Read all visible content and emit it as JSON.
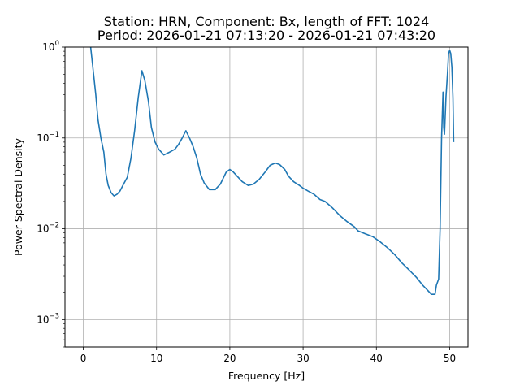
{
  "chart_data": {
    "type": "line",
    "title": [
      "Station: HRN, Component: Bx, length of FFT: 1024",
      "Period: 2026-01-21 07:13:20 - 2026-01-21 07:43:20"
    ],
    "xlabel": "Frequency [Hz]",
    "ylabel": "Power Spectral Density",
    "xlim": [
      -2.5,
      52.5
    ],
    "ylim": [
      0.0005,
      1
    ],
    "yscale": "log",
    "grid": true,
    "x_ticks": [
      {
        "value": 0,
        "label": "0"
      },
      {
        "value": 10,
        "label": "10"
      },
      {
        "value": 20,
        "label": "20"
      },
      {
        "value": 30,
        "label": "30"
      },
      {
        "value": 40,
        "label": "40"
      },
      {
        "value": 50,
        "label": "50"
      }
    ],
    "y_ticks": [
      {
        "value": 0.001,
        "label": "10⁻³",
        "base": "10",
        "exp": "−3"
      },
      {
        "value": 0.01,
        "label": "10⁻²",
        "base": "10",
        "exp": "−2"
      },
      {
        "value": 0.1,
        "label": "10⁻¹",
        "base": "10",
        "exp": "−1"
      },
      {
        "value": 1,
        "label": "10⁰",
        "base": "10",
        "exp": "0"
      }
    ],
    "colors": {
      "series": "#1f77b4",
      "grid": "#b0b0b0"
    },
    "series": [
      {
        "points": [
          [
            1.0,
            1.0
          ],
          [
            1.3,
            0.6
          ],
          [
            1.7,
            0.3
          ],
          [
            2.0,
            0.16
          ],
          [
            2.4,
            0.1
          ],
          [
            2.8,
            0.07
          ],
          [
            3.1,
            0.04
          ],
          [
            3.4,
            0.03
          ],
          [
            3.8,
            0.025
          ],
          [
            4.2,
            0.023
          ],
          [
            4.6,
            0.024
          ],
          [
            5.0,
            0.026
          ],
          [
            5.5,
            0.031
          ],
          [
            6.0,
            0.037
          ],
          [
            6.5,
            0.06
          ],
          [
            7.0,
            0.12
          ],
          [
            7.5,
            0.28
          ],
          [
            8.0,
            0.55
          ],
          [
            8.4,
            0.43
          ],
          [
            8.9,
            0.25
          ],
          [
            9.3,
            0.13
          ],
          [
            9.8,
            0.09
          ],
          [
            10.3,
            0.075
          ],
          [
            11.0,
            0.065
          ],
          [
            11.8,
            0.07
          ],
          [
            12.5,
            0.075
          ],
          [
            13.0,
            0.085
          ],
          [
            13.5,
            0.1
          ],
          [
            14.0,
            0.12
          ],
          [
            14.5,
            0.1
          ],
          [
            15.0,
            0.08
          ],
          [
            15.5,
            0.06
          ],
          [
            16.0,
            0.04
          ],
          [
            16.5,
            0.032
          ],
          [
            17.2,
            0.027
          ],
          [
            18.0,
            0.027
          ],
          [
            18.7,
            0.031
          ],
          [
            19.5,
            0.042
          ],
          [
            20.0,
            0.045
          ],
          [
            20.5,
            0.042
          ],
          [
            21.0,
            0.038
          ],
          [
            21.7,
            0.033
          ],
          [
            22.5,
            0.03
          ],
          [
            23.2,
            0.031
          ],
          [
            24.0,
            0.035
          ],
          [
            24.8,
            0.042
          ],
          [
            25.5,
            0.05
          ],
          [
            26.2,
            0.053
          ],
          [
            26.8,
            0.051
          ],
          [
            27.5,
            0.045
          ],
          [
            28.0,
            0.038
          ],
          [
            28.7,
            0.033
          ],
          [
            29.5,
            0.03
          ],
          [
            30.0,
            0.028
          ],
          [
            30.7,
            0.026
          ],
          [
            31.5,
            0.024
          ],
          [
            32.3,
            0.021
          ],
          [
            33.0,
            0.02
          ],
          [
            34.0,
            0.017
          ],
          [
            35.0,
            0.014
          ],
          [
            36.0,
            0.012
          ],
          [
            37.0,
            0.0105
          ],
          [
            37.5,
            0.0095
          ],
          [
            38.5,
            0.0088
          ],
          [
            39.5,
            0.0082
          ],
          [
            40.5,
            0.0072
          ],
          [
            41.5,
            0.0062
          ],
          [
            42.5,
            0.0052
          ],
          [
            43.5,
            0.0042
          ],
          [
            44.5,
            0.0035
          ],
          [
            45.5,
            0.0029
          ],
          [
            46.3,
            0.0024
          ],
          [
            47.0,
            0.0021
          ],
          [
            47.5,
            0.0019
          ],
          [
            48.0,
            0.0019
          ],
          [
            48.2,
            0.0024
          ],
          [
            48.5,
            0.0028
          ],
          [
            48.7,
            0.01
          ],
          [
            48.9,
            0.1
          ],
          [
            49.1,
            0.32
          ],
          [
            49.2,
            0.13
          ],
          [
            49.3,
            0.11
          ],
          [
            49.5,
            0.28
          ],
          [
            49.7,
            0.5
          ],
          [
            49.85,
            0.85
          ],
          [
            50.0,
            0.92
          ],
          [
            50.15,
            0.85
          ],
          [
            50.3,
            0.6
          ],
          [
            50.45,
            0.28
          ],
          [
            50.55,
            0.09
          ]
        ]
      }
    ]
  }
}
